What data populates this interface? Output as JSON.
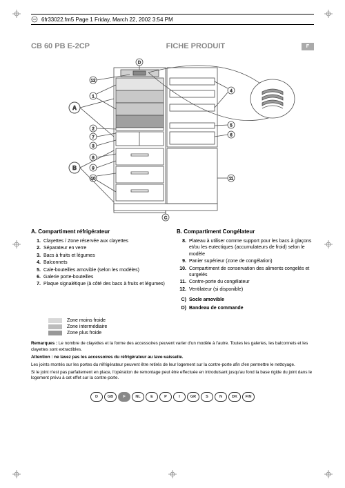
{
  "header": {
    "text": "6fr33022.fm5  Page 1  Friday, March 22, 2002  3:54 PM"
  },
  "title": {
    "model": "CB 60 PB E-2CP",
    "label": "FICHE PRODUIT",
    "badge": "F"
  },
  "diagram": {
    "labels": [
      "1",
      "2",
      "3",
      "4",
      "5",
      "6",
      "7",
      "8",
      "9",
      "10",
      "11",
      "12"
    ],
    "circles": [
      "A",
      "B",
      "C",
      "D"
    ],
    "colors": {
      "stroke": "#4a4a4a",
      "fill_light": "#e5e5e5",
      "fill_med": "#c8c8c8",
      "fill_dark": "#a0a0a0",
      "fill_hatch": "#d0d0d0"
    }
  },
  "sectionA": {
    "heading": "A.    Compartiment réfrigérateur",
    "items": [
      {
        "n": "1.",
        "t": "Clayettes / Zone réservée aux clayettes"
      },
      {
        "n": "2.",
        "t": "Séparateur en verre"
      },
      {
        "n": "3.",
        "t": "Bacs à fruits et légumes"
      },
      {
        "n": "4.",
        "t": "Balconnets"
      },
      {
        "n": "5.",
        "t": "Cale-bouteilles amovible (selon les modèles)"
      },
      {
        "n": "6.",
        "t": "Galerie porte-bouteilles"
      },
      {
        "n": "7.",
        "t": "Plaque signalétique (à côté des bacs à fruits et légumes)"
      }
    ]
  },
  "sectionB": {
    "heading": "B.    Compartiment Congélateur",
    "items": [
      {
        "n": "8.",
        "t": "Plateau à utiliser comme support pour les bacs à glaçons et/ou les eutectiques (accumulateurs de froid) selon le modèle"
      },
      {
        "n": "9.",
        "t": "Panier supérieur (zone de congélation)"
      },
      {
        "n": "10.",
        "t": "Compartiment de conservation des aliments congelés et surgelés"
      },
      {
        "n": "11.",
        "t": "Contre-porte du congélateur"
      },
      {
        "n": "12.",
        "t": "Ventilateur (si disponible)"
      }
    ]
  },
  "sectionCD": [
    {
      "n": "C)",
      "t": "Socle amovible"
    },
    {
      "n": "D)",
      "t": "Bandeau de commande"
    }
  ],
  "legend": [
    {
      "color": "#d8d8d8",
      "t": "Zone moins froide"
    },
    {
      "color": "#bcbcbc",
      "t": "Zone intermédiaire"
    },
    {
      "color": "#989898",
      "t": "Zone plus froide"
    }
  ],
  "notes": {
    "p1_b": "Remarques :",
    "p1": " Le nombre de clayettes et la forme des accessoires peuvent varier d'un modèle à l'autre. Toutes les galeries, les balconnets et les clayettes sont extractibles.",
    "p2_b": "Attention : ne lavez pas les accessoires du réfrigérateur au lave-vaisselle.",
    "p3": "Les joints montés sur les portes du réfrigérateur peuvent être retirés de leur logement sur la contre-porte afin d'en permettre le nettoyage.",
    "p4": "Si le joint n'est pas parfaitement en place, l'opération de remontage peut être effectuée en introduisant jusqu'au fond la base rigide du joint dans le logement prévu à cet effet sur la contre-porte."
  },
  "langs": [
    "D",
    "GB",
    "F",
    "NL",
    "E",
    "P",
    "I",
    "GR",
    "S",
    "N",
    "DK",
    "FIN"
  ],
  "lang_active": "F"
}
